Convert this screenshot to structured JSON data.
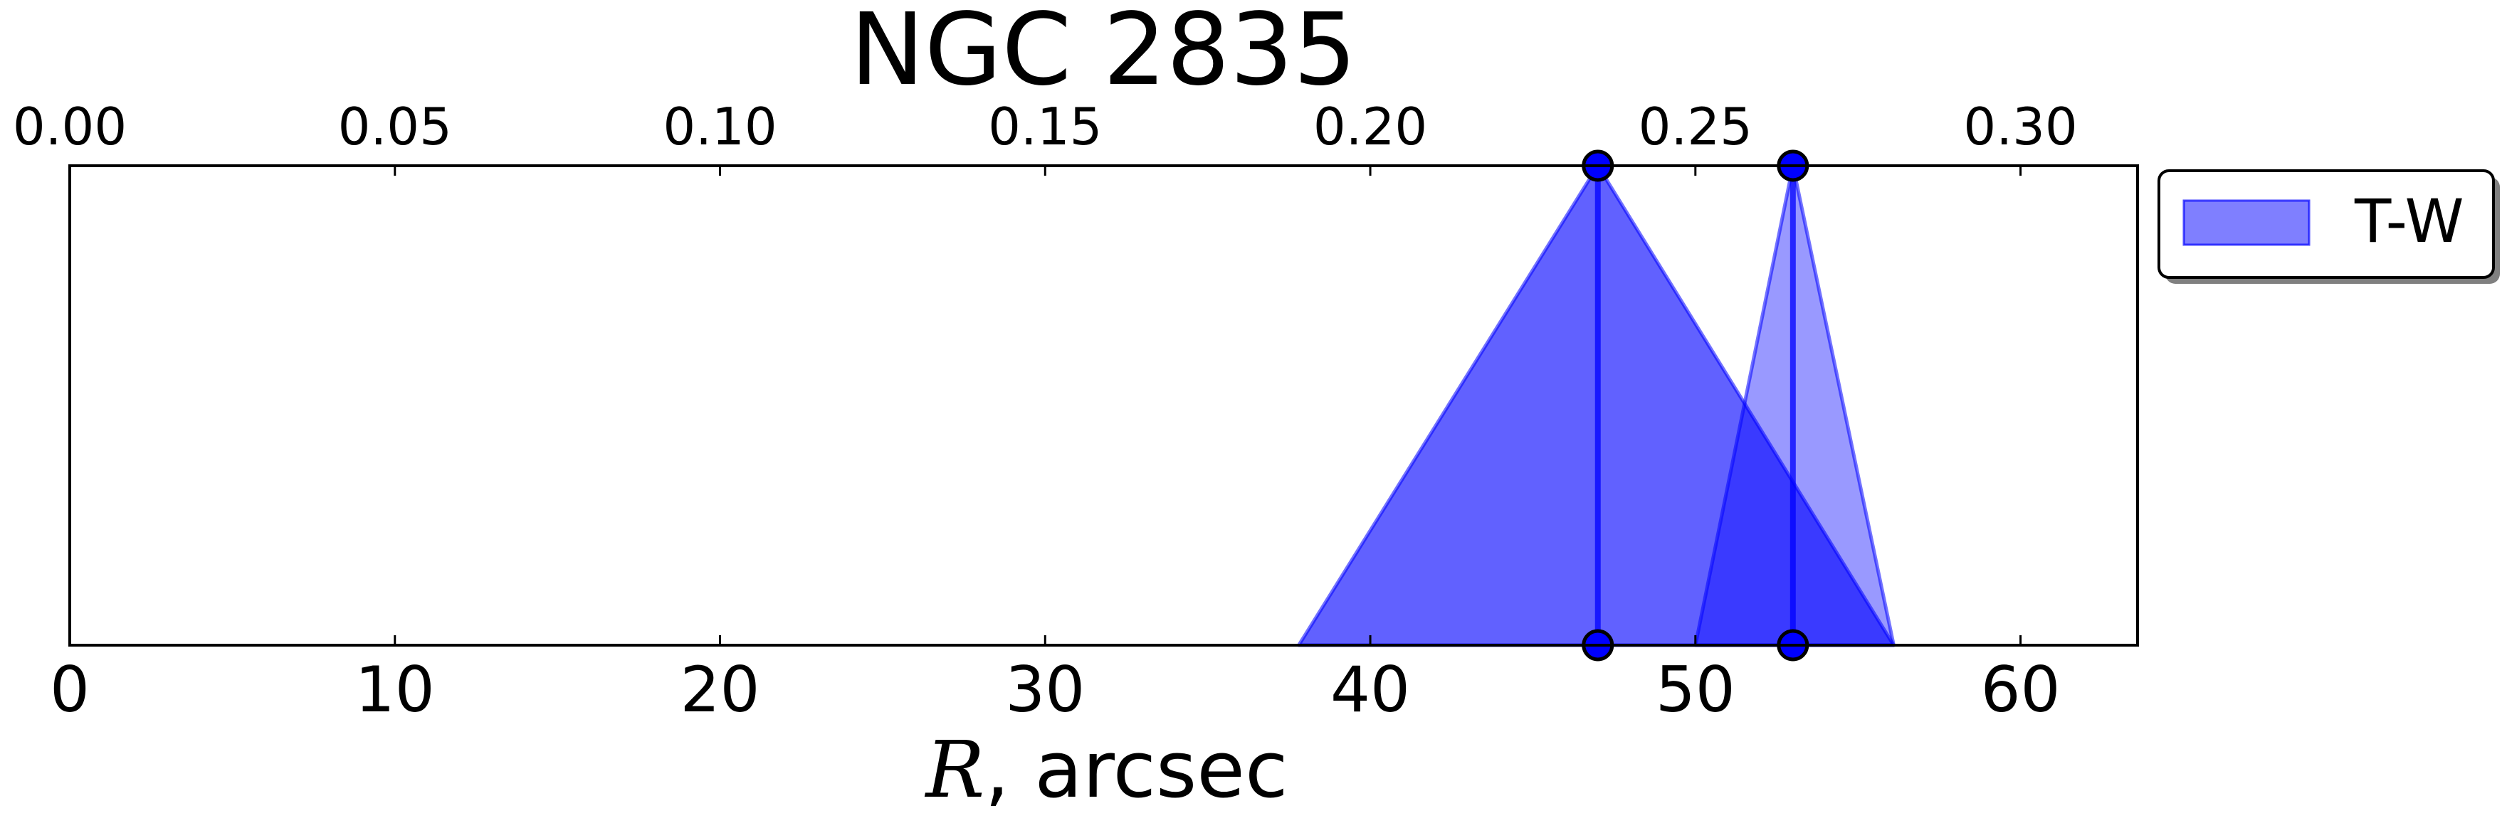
{
  "chart_data": {
    "type": "area",
    "title": "NGC 2835",
    "xlabel_symbol": "R",
    "xlabel_rest": ", arcsec",
    "xlim": [
      0,
      63.6
    ],
    "ylim": [
      0,
      1
    ],
    "top_axis_ticks": [
      "0.00",
      "0.05",
      "0.10",
      "0.15",
      "0.20",
      "0.25",
      "0.30"
    ],
    "top_axis_ticks_at_bottom_units": [
      0,
      10,
      20,
      30,
      40,
      50,
      60
    ],
    "bottom_axis_ticks": [
      0,
      10,
      20,
      30,
      40,
      50,
      60
    ],
    "legend": {
      "label": "T-W",
      "position": "outside-right-top"
    },
    "series": [
      {
        "name": "T-W",
        "color": "#0000ff",
        "triangles": [
          {
            "left": 37.8,
            "peak": 47.0,
            "right": 56.1,
            "opacity": 0.62
          },
          {
            "left": 50.0,
            "peak": 53.0,
            "right": 56.1,
            "opacity": 0.4
          }
        ],
        "markers": [
          47.0,
          53.0
        ]
      }
    ]
  }
}
